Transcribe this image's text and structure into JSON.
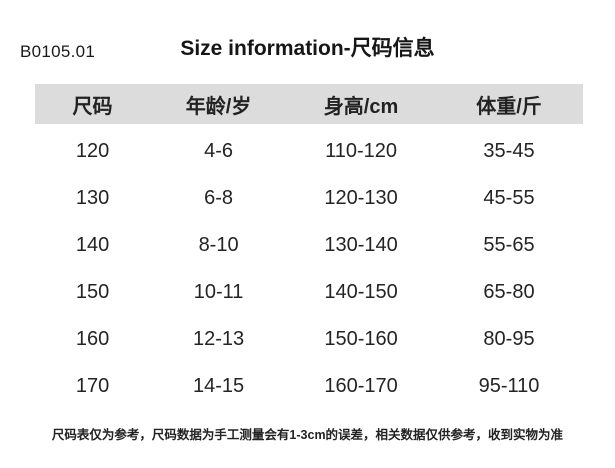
{
  "page": {
    "code": "B0105.01",
    "title": "Size information-尺码信息",
    "footnote": "尺码表仅为参考，尺码数据为手工测量会有1-3cm的误差，相关数据仅供参考，收到实物为准"
  },
  "chart_data": {
    "type": "table",
    "title": "Size information-尺码信息",
    "columns": [
      "尺码",
      "年龄/岁",
      "身高/cm",
      "体重/斤"
    ],
    "rows": [
      [
        "120",
        "4-6",
        "110-120",
        "35-45"
      ],
      [
        "130",
        "6-8",
        "120-130",
        "45-55"
      ],
      [
        "140",
        "8-10",
        "130-140",
        "55-65"
      ],
      [
        "150",
        "10-11",
        "140-150",
        "65-80"
      ],
      [
        "160",
        "12-13",
        "150-160",
        "80-95"
      ],
      [
        "170",
        "14-15",
        "160-170",
        "95-110"
      ]
    ]
  },
  "colors": {
    "header_bg": "#dcdcdc",
    "text_dark": "#1f1f1f"
  }
}
